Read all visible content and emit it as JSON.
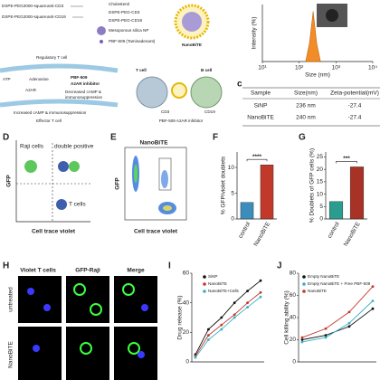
{
  "panels": {
    "a": {
      "items": [
        "DSPE-PEG2000-square",
        "anti-CD3",
        "DSPE-PEG2000-square",
        "anti-CD19",
        "Cholesterol",
        "DSPE-PEG-CD3",
        "DSPE-PEG-CD19",
        "Mesoporous silica NP",
        "PBF-509 (Taminadenant)",
        "NanoBiTE"
      ],
      "mechanism": [
        "Regulatory T cell",
        "ATP",
        "Adenosine",
        "A2AR",
        "PBF-509",
        "A2AR inhibitor",
        "Decreased cAMP &",
        "immunosuppression",
        "Increased cAMP & immunosuppression",
        "Effector T cell"
      ]
    },
    "b": {
      "labels": [
        "T cell",
        "B cell",
        "CD3",
        "CD19",
        "PBF-509 A2AR inhibitor"
      ]
    },
    "dls": {
      "y_label": "Intensity (%)",
      "x_label": "Size (nm)",
      "log_x": true,
      "xlim": [
        10,
        10000
      ],
      "xticks": [
        {
          "value": 10,
          "label": "10¹"
        },
        {
          "value": 100,
          "label": "10²"
        },
        {
          "value": 1000,
          "label": "10³"
        },
        {
          "value": 10000,
          "label": "10⁴"
        }
      ],
      "ylim": [
        0,
        25
      ],
      "color": "#f28c28",
      "x": [
        150,
        190,
        240,
        300,
        380
      ],
      "values": [
        0,
        8,
        22,
        8,
        0
      ]
    },
    "c": {
      "label": "c",
      "header": [
        "Sample",
        "Size(nm)",
        "Zeta-potential(mV)"
      ],
      "rows": [
        [
          "SiNP",
          "236 nm",
          "-27.4"
        ],
        [
          "NanoBiTE",
          "240 nm",
          "-27.4"
        ]
      ]
    },
    "d": {
      "label": "D",
      "quadrants": [
        "Raji cells",
        "double positive",
        "T cells"
      ],
      "y_label": "GFP",
      "x_label": "Cell trace violet"
    },
    "e": {
      "label": "E",
      "title": "NanoBiTE",
      "y_label": "GFP",
      "x_label": "Cell trace violet"
    },
    "f": {
      "label": "F",
      "y_label": "% GFP/violet doublets",
      "categories": [
        "control",
        "NanoBiTE"
      ],
      "colors": [
        "#3c8dbc",
        "#c0392b"
      ],
      "values": [
        3.2,
        10.5
      ],
      "ylim": [
        0,
        13
      ],
      "yticks": [
        0,
        5,
        10
      ],
      "significance": "****"
    },
    "g": {
      "label": "G",
      "y_label": "% Doublets of GFP cells (%)",
      "categories": [
        "control",
        "NanoBiTE"
      ],
      "colors": [
        "#2a9d8f",
        "#a93226"
      ],
      "values": [
        7,
        21
      ],
      "ylim": [
        0,
        27
      ],
      "yticks": [
        0,
        5,
        10,
        15,
        20,
        25
      ],
      "significance": "***"
    },
    "h": {
      "label": "H",
      "columns": [
        "Violet T cells",
        "GFP-Raji",
        "Merge"
      ],
      "rows": [
        "untreated",
        "NanoBiTE"
      ]
    },
    "i": {
      "label": "I",
      "y_label": "Drug release (%)",
      "categories": [
        null,
        null,
        null,
        null,
        null,
        null
      ],
      "ylim": [
        0,
        60
      ],
      "yticks": [
        0,
        20,
        40,
        60
      ],
      "series": [
        {
          "name": "SiNP",
          "color": "#111111",
          "values": [
            5,
            22,
            30,
            40,
            48,
            55
          ]
        },
        {
          "name": "NanoBiTE",
          "color": "#c0392b",
          "values": [
            4,
            18,
            25,
            32,
            40,
            47
          ]
        },
        {
          "name": "NanoBiTE+Cells",
          "color": "#3ab0c9",
          "values": [
            3,
            15,
            22,
            30,
            37,
            44
          ]
        }
      ]
    },
    "j": {
      "label": "J",
      "y_label": "Cell killing ability (%)",
      "categories": [
        null,
        null,
        null,
        null
      ],
      "ylim": [
        0,
        80
      ],
      "yticks": [
        0,
        20,
        40,
        60,
        80
      ],
      "series": [
        {
          "name": "Empty NanoBiTE",
          "color": "#111111",
          "values": [
            20,
            24,
            32,
            48
          ]
        },
        {
          "name": "Empty NanoBiTE + Free PBF-509",
          "color": "#3ab0c9",
          "values": [
            18,
            22,
            35,
            55
          ]
        },
        {
          "name": "NanoBiTE",
          "color": "#c0392b",
          "values": [
            22,
            30,
            45,
            68
          ]
        }
      ]
    }
  }
}
